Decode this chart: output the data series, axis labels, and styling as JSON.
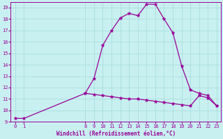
{
  "x_main": [
    0,
    1,
    8,
    9,
    10,
    11,
    12,
    13,
    14,
    15,
    16,
    17,
    18,
    19,
    20,
    21,
    22,
    23
  ],
  "y_main": [
    9.3,
    9.3,
    11.5,
    12.8,
    15.7,
    17.0,
    18.1,
    18.5,
    18.3,
    19.3,
    19.3,
    18.0,
    16.8,
    13.9,
    11.8,
    11.5,
    11.3,
    10.4
  ],
  "x_lower": [
    8,
    9,
    10,
    11,
    12,
    13,
    14,
    15,
    16,
    17,
    18,
    19,
    20,
    21,
    22,
    23
  ],
  "y_lower": [
    11.5,
    11.4,
    11.3,
    11.2,
    11.1,
    11.0,
    11.0,
    10.9,
    10.8,
    10.7,
    10.6,
    10.5,
    10.4,
    11.3,
    11.1,
    10.4
  ],
  "line_color": "#990099",
  "bg_color": "#c8f0f0",
  "grid_color": "#aadddd",
  "xlabel": "Windchill (Refroidissement éolien,°C)",
  "xlim": [
    -0.5,
    23.5
  ],
  "ylim": [
    9,
    19.5
  ],
  "yticks": [
    9,
    10,
    11,
    12,
    13,
    14,
    15,
    16,
    17,
    18,
    19
  ],
  "xticks": [
    0,
    1,
    8,
    9,
    10,
    11,
    12,
    13,
    14,
    15,
    16,
    17,
    18,
    19,
    20,
    21,
    22,
    23
  ],
  "marker": "*",
  "markersize": 3.5,
  "linewidth": 0.9,
  "tick_fontsize": 5,
  "xlabel_fontsize": 5.5
}
